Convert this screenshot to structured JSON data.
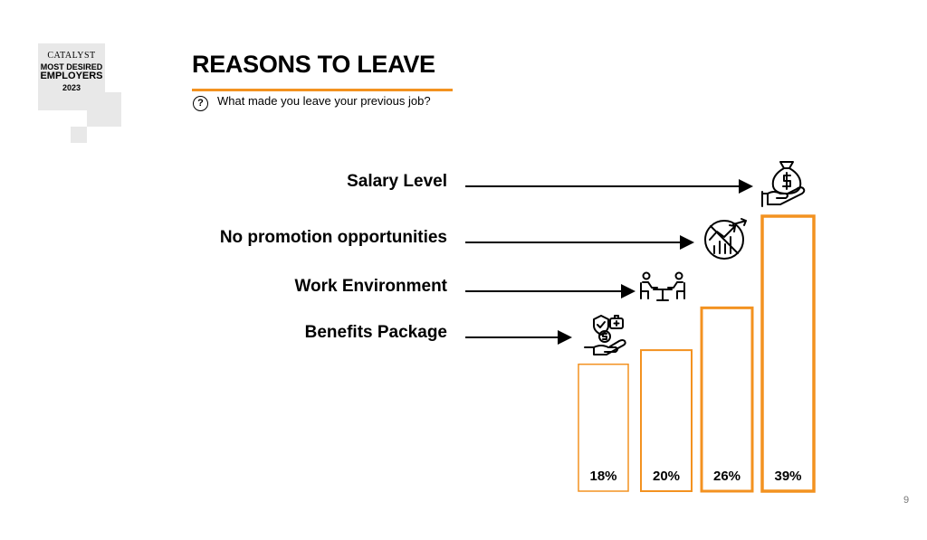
{
  "logo": {
    "brand": "CATALYST",
    "line2": "MOST DESIRED",
    "line3": "EMPLOYERS",
    "year": "2023"
  },
  "header": {
    "title": "REASONS TO LEAVE",
    "question_icon": "?",
    "subtitle": "What made you leave your previous job?"
  },
  "accent_color": "#f39220",
  "chart_data": {
    "type": "bar",
    "categories": [
      "Benefits Package",
      "Work Environment",
      "No promotion opportunities",
      "Salary Level"
    ],
    "values": [
      18,
      20,
      26,
      39
    ],
    "value_labels": [
      "18%",
      "20%",
      "26%",
      "39%"
    ],
    "icons": [
      "hand-shield-money-icon",
      "meeting-table-icon",
      "no-growth-chart-icon",
      "money-bag-hand-icon"
    ],
    "title": "REASONS TO LEAVE",
    "ylim": [
      0,
      39
    ]
  },
  "page_number": "9"
}
